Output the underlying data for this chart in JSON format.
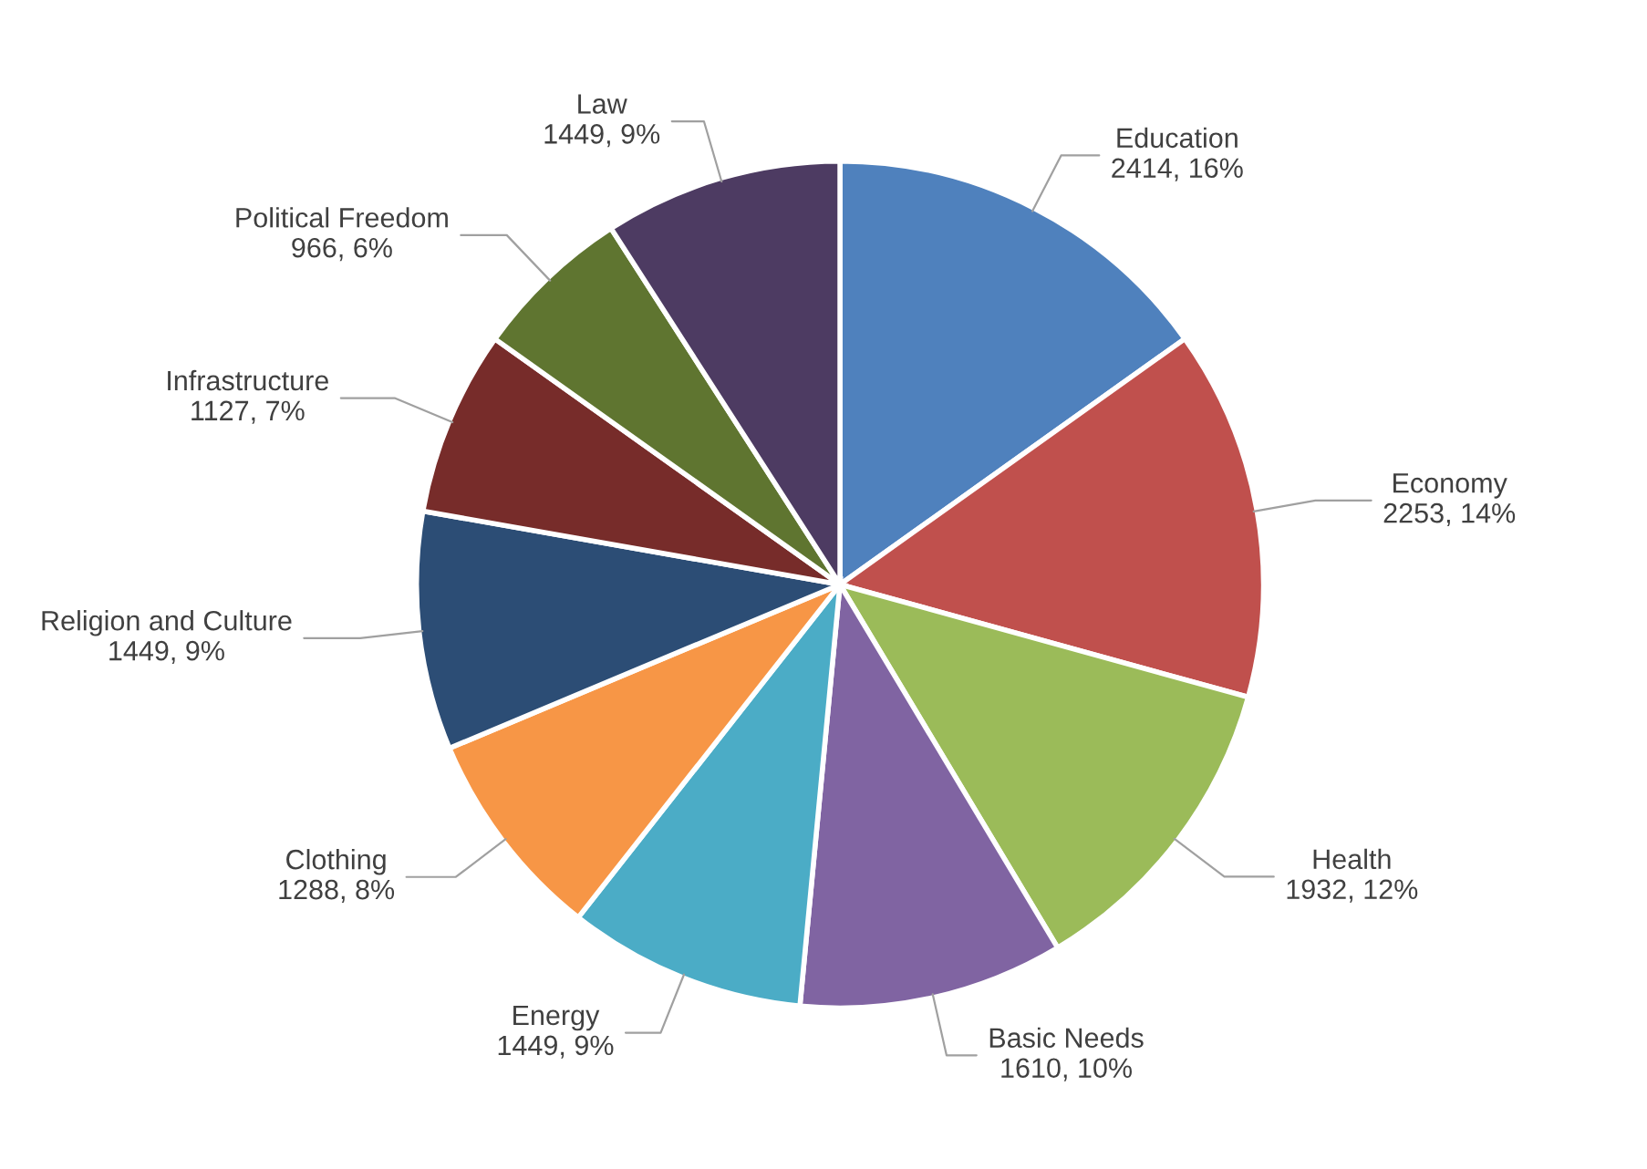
{
  "chart_data": {
    "type": "pie",
    "categories": [
      "Education",
      "Economy",
      "Health",
      "Basic Needs",
      "Energy",
      "Clothing",
      "Religion and Culture",
      "Infrastructure",
      "Political Freedom",
      "Law"
    ],
    "values": [
      2414,
      2253,
      1932,
      1610,
      1449,
      1288,
      1449,
      1127,
      966,
      1449
    ],
    "value_labels": [
      "2414, 16%",
      "2253, 14%",
      "1932, 12%",
      "1610, 10%",
      "1449, 9%",
      "1288, 8%",
      "1449, 9%",
      "1127, 7%",
      "966, 6%",
      "1449, 9%"
    ],
    "colors": [
      "#4f81bd",
      "#c0504d",
      "#9bbb59",
      "#8064a2",
      "#4bacc6",
      "#f79646",
      "#2c4d75",
      "#772c2a",
      "#5f7530",
      "#4d3b62"
    ],
    "legend": false
  }
}
